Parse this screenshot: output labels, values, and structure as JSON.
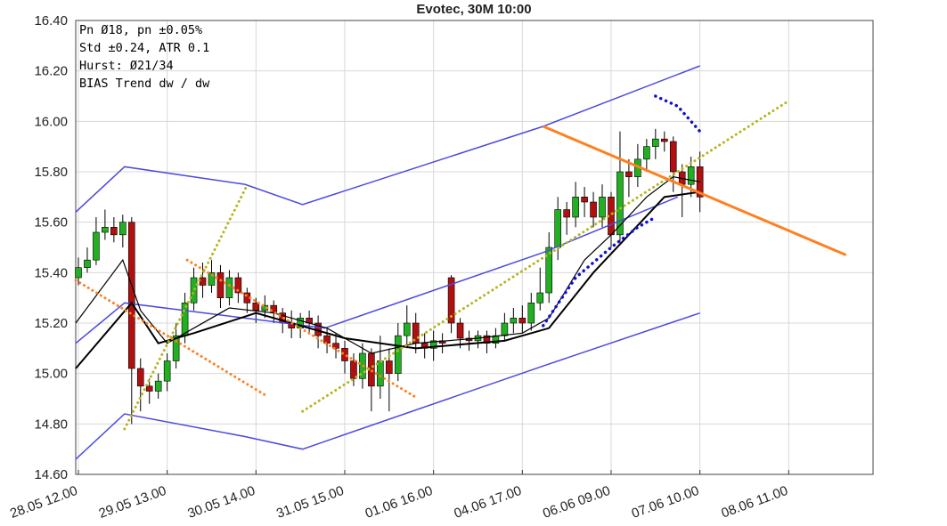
{
  "chart_data": {
    "type": "candlestick",
    "title": "Evotec, 30M 10:00",
    "info_lines": [
      "Pn  Ø18, pn ±0.05%",
      "Std ±0.24, ATR 0.1",
      "Hurst: Ø21/34",
      "BIAS Trend dw / dw"
    ],
    "xlim": [
      -0.6,
      179
    ],
    "xticks": [
      {
        "value": 0,
        "label": "28.05 12.00"
      },
      {
        "value": 20,
        "label": "29.05 13.00"
      },
      {
        "value": 40,
        "label": "30.05 14.00"
      },
      {
        "value": 60,
        "label": "31.05 15.00"
      },
      {
        "value": 80,
        "label": "01.06 16.00"
      },
      {
        "value": 100,
        "label": "04.06 17.00"
      },
      {
        "value": 120,
        "label": "06.06 09.00"
      },
      {
        "value": 140,
        "label": "07.06 10.00"
      },
      {
        "value": 160,
        "label": "08.06 11.00"
      }
    ],
    "ylim": [
      14.6,
      16.4
    ],
    "yticks": [
      {
        "value": 14.6,
        "label": "14.60"
      },
      {
        "value": 14.8,
        "label": "14.80"
      },
      {
        "value": 15.0,
        "label": "15.00"
      },
      {
        "value": 15.2,
        "label": "15.20"
      },
      {
        "value": 15.4,
        "label": "15.40"
      },
      {
        "value": 15.6,
        "label": "15.60"
      },
      {
        "value": 15.8,
        "label": "15.80"
      },
      {
        "value": 16.0,
        "label": "16.00"
      },
      {
        "value": 16.2,
        "label": "16.20"
      },
      {
        "value": 16.4,
        "label": "16.40"
      }
    ],
    "grid": true,
    "up_color": "#22b022",
    "down_color": "#b01010",
    "x": [
      0,
      2,
      4,
      6,
      8,
      10,
      12,
      14,
      16,
      18,
      20,
      22,
      24,
      26,
      28,
      30,
      32,
      34,
      36,
      38,
      40,
      42,
      44,
      46,
      48,
      50,
      52,
      54,
      56,
      58,
      60,
      62,
      64,
      66,
      68,
      70,
      72,
      74,
      76,
      78,
      80,
      82,
      84,
      86,
      88,
      90,
      92,
      94,
      96,
      98,
      100,
      102,
      104,
      106,
      108,
      110,
      112,
      114,
      116,
      118,
      120,
      122,
      124,
      126,
      128,
      130,
      132,
      134,
      136,
      138,
      140
    ],
    "open": [
      15.38,
      15.42,
      15.45,
      15.56,
      15.58,
      15.55,
      15.6,
      15.02,
      14.95,
      14.93,
      14.97,
      15.05,
      15.15,
      15.28,
      15.38,
      15.35,
      15.4,
      15.3,
      15.38,
      15.32,
      15.28,
      15.25,
      15.27,
      15.24,
      15.2,
      15.18,
      15.22,
      15.2,
      15.15,
      15.12,
      15.1,
      15.05,
      14.98,
      15.08,
      14.95,
      15.05,
      15.0,
      15.15,
      15.2,
      15.12,
      15.1,
      15.13,
      15.38,
      15.2,
      15.14,
      15.13,
      15.15,
      15.12,
      15.15,
      15.2,
      15.22,
      15.2,
      15.28,
      15.32,
      15.5,
      15.65,
      15.62,
      15.7,
      15.68,
      15.62,
      15.7,
      15.55,
      15.8,
      15.78,
      15.85,
      15.9,
      15.93,
      15.92,
      15.8,
      15.75,
      15.82
    ],
    "high": [
      15.46,
      15.5,
      15.62,
      15.65,
      15.62,
      15.63,
      15.62,
      15.06,
      14.98,
      15.0,
      15.08,
      15.2,
      15.32,
      15.42,
      15.44,
      15.45,
      15.43,
      15.41,
      15.4,
      15.34,
      15.3,
      15.31,
      15.29,
      15.26,
      15.25,
      15.24,
      15.25,
      15.23,
      15.18,
      15.16,
      15.13,
      15.08,
      15.12,
      15.1,
      15.15,
      15.1,
      15.2,
      15.27,
      15.24,
      15.16,
      15.17,
      15.16,
      15.39,
      15.22,
      15.17,
      15.17,
      15.17,
      15.18,
      15.24,
      15.26,
      15.27,
      15.32,
      15.42,
      15.56,
      15.7,
      15.68,
      15.76,
      15.74,
      15.72,
      15.75,
      15.72,
      15.96,
      15.85,
      15.91,
      15.93,
      15.97,
      15.96,
      15.94,
      15.83,
      15.86,
      15.88
    ],
    "low": [
      15.35,
      15.4,
      15.43,
      15.53,
      15.52,
      15.5,
      14.8,
      14.85,
      14.88,
      14.9,
      14.93,
      15.02,
      15.12,
      15.25,
      15.3,
      15.32,
      15.26,
      15.27,
      15.28,
      15.24,
      15.2,
      15.22,
      15.2,
      15.16,
      15.14,
      15.14,
      15.16,
      15.1,
      15.08,
      15.06,
      15.0,
      14.95,
      14.94,
      14.85,
      14.9,
      14.85,
      14.97,
      15.1,
      15.08,
      15.06,
      15.05,
      15.08,
      15.16,
      15.1,
      15.09,
      15.1,
      15.08,
      15.1,
      15.13,
      15.16,
      15.16,
      15.17,
      15.25,
      15.28,
      15.45,
      15.55,
      15.58,
      15.62,
      15.58,
      15.58,
      15.5,
      15.52,
      15.7,
      15.74,
      15.8,
      15.85,
      15.88,
      15.72,
      15.62,
      15.7,
      15.64
    ],
    "close": [
      15.42,
      15.45,
      15.56,
      15.58,
      15.55,
      15.6,
      15.02,
      14.95,
      14.93,
      14.97,
      15.05,
      15.15,
      15.28,
      15.38,
      15.35,
      15.4,
      15.3,
      15.38,
      15.32,
      15.28,
      15.25,
      15.27,
      15.24,
      15.2,
      15.18,
      15.22,
      15.2,
      15.15,
      15.12,
      15.1,
      15.05,
      14.98,
      15.08,
      14.95,
      15.05,
      15.0,
      15.15,
      15.2,
      15.12,
      15.1,
      15.13,
      15.12,
      15.2,
      15.14,
      15.13,
      15.15,
      15.12,
      15.15,
      15.2,
      15.22,
      15.2,
      15.28,
      15.32,
      15.5,
      15.65,
      15.62,
      15.7,
      15.68,
      15.62,
      15.7,
      15.55,
      15.8,
      15.78,
      15.85,
      15.9,
      15.93,
      15.92,
      15.8,
      15.75,
      15.82,
      15.7
    ],
    "lines": [
      {
        "color": "#4a4ae0",
        "style": "solid",
        "width": 1.5,
        "x": [
          -0.6,
          10.4,
          37.5,
          50.5,
          104.7,
          140
        ],
        "y": [
          15.64,
          15.82,
          15.75,
          15.67,
          15.98,
          16.22
        ]
      },
      {
        "color": "#4a4ae0",
        "style": "solid",
        "width": 1.5,
        "x": [
          -0.6,
          10.4,
          37.5,
          50.5,
          104.7,
          140
        ],
        "y": [
          14.66,
          14.84,
          14.75,
          14.7,
          15.03,
          15.24
        ]
      },
      {
        "color": "#4a4ae0",
        "style": "solid",
        "width": 1.5,
        "x": [
          -0.6,
          10.4,
          55.5,
          104.7,
          135
        ],
        "y": [
          15.12,
          15.28,
          15.18,
          15.48,
          15.7
        ]
      },
      {
        "color": "#000000",
        "style": "solid",
        "width": 1.2,
        "x": [
          -0.6,
          10,
          14,
          20,
          26,
          34,
          44,
          56,
          66,
          76,
          90,
          100,
          106,
          114,
          120,
          128,
          134,
          140
        ],
        "y": [
          15.2,
          15.45,
          15.25,
          15.12,
          15.18,
          15.26,
          15.24,
          15.18,
          15.08,
          15.12,
          15.14,
          15.16,
          15.22,
          15.45,
          15.55,
          15.7,
          15.78,
          15.76
        ]
      },
      {
        "color": "#000000",
        "style": "solid",
        "width": 2,
        "x": [
          -0.6,
          12,
          18,
          26,
          40,
          60,
          76,
          96,
          106,
          116,
          124,
          132,
          140
        ],
        "y": [
          15.02,
          15.28,
          15.12,
          15.16,
          15.24,
          15.14,
          15.1,
          15.13,
          15.18,
          15.4,
          15.55,
          15.7,
          15.72
        ]
      },
      {
        "color": "#ff8020",
        "style": "dotted",
        "width": 3,
        "x": [
          -0.6,
          42.5
        ],
        "y": [
          15.37,
          14.91
        ]
      },
      {
        "color": "#ff8020",
        "style": "dotted",
        "width": 3,
        "x": [
          24.5,
          75.6
        ],
        "y": [
          15.45,
          14.91
        ]
      },
      {
        "color": "#b5b520",
        "style": "dotted",
        "width": 3,
        "x": [
          10.4,
          38.1
        ],
        "y": [
          14.78,
          15.75
        ]
      },
      {
        "color": "#b5b520",
        "style": "dotted",
        "width": 3,
        "x": [
          50.5,
          159.9
        ],
        "y": [
          14.85,
          16.08
        ]
      },
      {
        "color": "#1010d0",
        "style": "dotted",
        "width": 3.5,
        "x": [
          104.7,
          112,
          120,
          126,
          130
        ],
        "y": [
          15.19,
          15.38,
          15.5,
          15.58,
          15.62
        ]
      },
      {
        "color": "#1010d0",
        "style": "dotted",
        "width": 3.5,
        "x": [
          130,
          135,
          140
        ],
        "y": [
          16.1,
          16.06,
          15.96
        ]
      },
      {
        "color": "#ff8020",
        "style": "solid",
        "width": 3,
        "x": [
          104.7,
          172.9
        ],
        "y": [
          15.98,
          15.47
        ]
      }
    ]
  }
}
